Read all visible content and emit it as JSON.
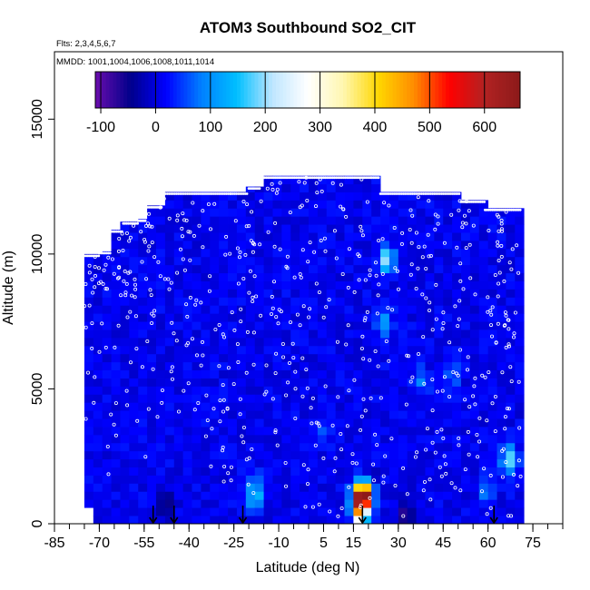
{
  "chart_data": {
    "type": "heatmap",
    "title": "ATOM3 Southbound SO2_CIT",
    "subtitle_flights": "Flts: 2,3,4,5,6,7",
    "subtitle_dates": "MMDD: 1001,1004,1006,1008,1011,1014",
    "xlabel": "Latitude (deg N)",
    "ylabel": "Altitude (m)",
    "xlim": [
      -85,
      85
    ],
    "ylim": [
      0,
      17500
    ],
    "x_ticks": [
      -85,
      -70,
      -55,
      -40,
      -25,
      -10,
      5,
      15,
      30,
      45,
      60,
      75
    ],
    "x_tick_labels": [
      "-85",
      "-70",
      "-55",
      "-40",
      "-25",
      "-10",
      "5",
      "15",
      "30",
      "45",
      "60",
      "75"
    ],
    "y_ticks": [
      0,
      5000,
      10000,
      15000
    ],
    "y_tick_labels": [
      "0",
      "5000",
      "10000",
      "15000"
    ],
    "colorbar": {
      "range": [
        -110,
        665
      ],
      "ticks": [
        -100,
        0,
        100,
        200,
        300,
        400,
        500,
        600
      ],
      "tick_labels": [
        "-100",
        "0",
        "100",
        "200",
        "300",
        "400",
        "500",
        "600"
      ],
      "colors": [
        "#6a0dad",
        "#00008b",
        "#0000ff",
        "#0080ff",
        "#00bfff",
        "#bfe6ff",
        "#ffffff",
        "#fff7b0",
        "#ffd700",
        "#ff8c00",
        "#ff0000",
        "#b22222",
        "#8b1a1a"
      ]
    },
    "coverage_top_profile": [
      [
        -75,
        10000
      ],
      [
        -70,
        10100
      ],
      [
        -66,
        10900
      ],
      [
        -62,
        11200
      ],
      [
        -57,
        11300
      ],
      [
        -54,
        11800
      ],
      [
        -49,
        12300
      ],
      [
        -43,
        12300
      ],
      [
        -26,
        12300
      ],
      [
        -20,
        12500
      ],
      [
        -16,
        12900
      ],
      [
        21,
        12900
      ],
      [
        24,
        12300
      ],
      [
        48,
        12300
      ],
      [
        51,
        12000
      ],
      [
        57,
        12000
      ],
      [
        59,
        11700
      ],
      [
        66,
        11700
      ],
      [
        71,
        11700
      ]
    ],
    "coverage_bottom_latitude_range": [
      -77,
      72
    ],
    "background_value": 10,
    "anomalies": [
      {
        "lat": -18,
        "alt": 900,
        "value": 140
      },
      {
        "lat": -18,
        "alt": 1500,
        "value": 90
      },
      {
        "lat": 19,
        "alt": 1100,
        "value": 560
      },
      {
        "lat": 17,
        "alt": 1000,
        "value": 420
      },
      {
        "lat": 17,
        "alt": 400,
        "value": 320
      },
      {
        "lat": 20,
        "alt": 1600,
        "value": -90
      },
      {
        "lat": 26,
        "alt": 9800,
        "value": 200
      },
      {
        "lat": 25,
        "alt": 7500,
        "value": 120
      },
      {
        "lat": 67,
        "alt": 2400,
        "value": 210
      },
      {
        "lat": 60,
        "alt": 1200,
        "value": 90
      },
      {
        "lat": 38,
        "alt": 5300,
        "value": 80
      },
      {
        "lat": 48,
        "alt": 5500,
        "value": 70
      },
      {
        "lat": -48,
        "alt": 600,
        "value": -80
      },
      {
        "lat": 33,
        "alt": 300,
        "value": -80
      },
      {
        "lat": 5,
        "alt": 3400,
        "value": 70
      }
    ],
    "markers_at_latitudes": [
      -52,
      -45,
      -22,
      18,
      62
    ],
    "legend": "none",
    "grid": false
  }
}
